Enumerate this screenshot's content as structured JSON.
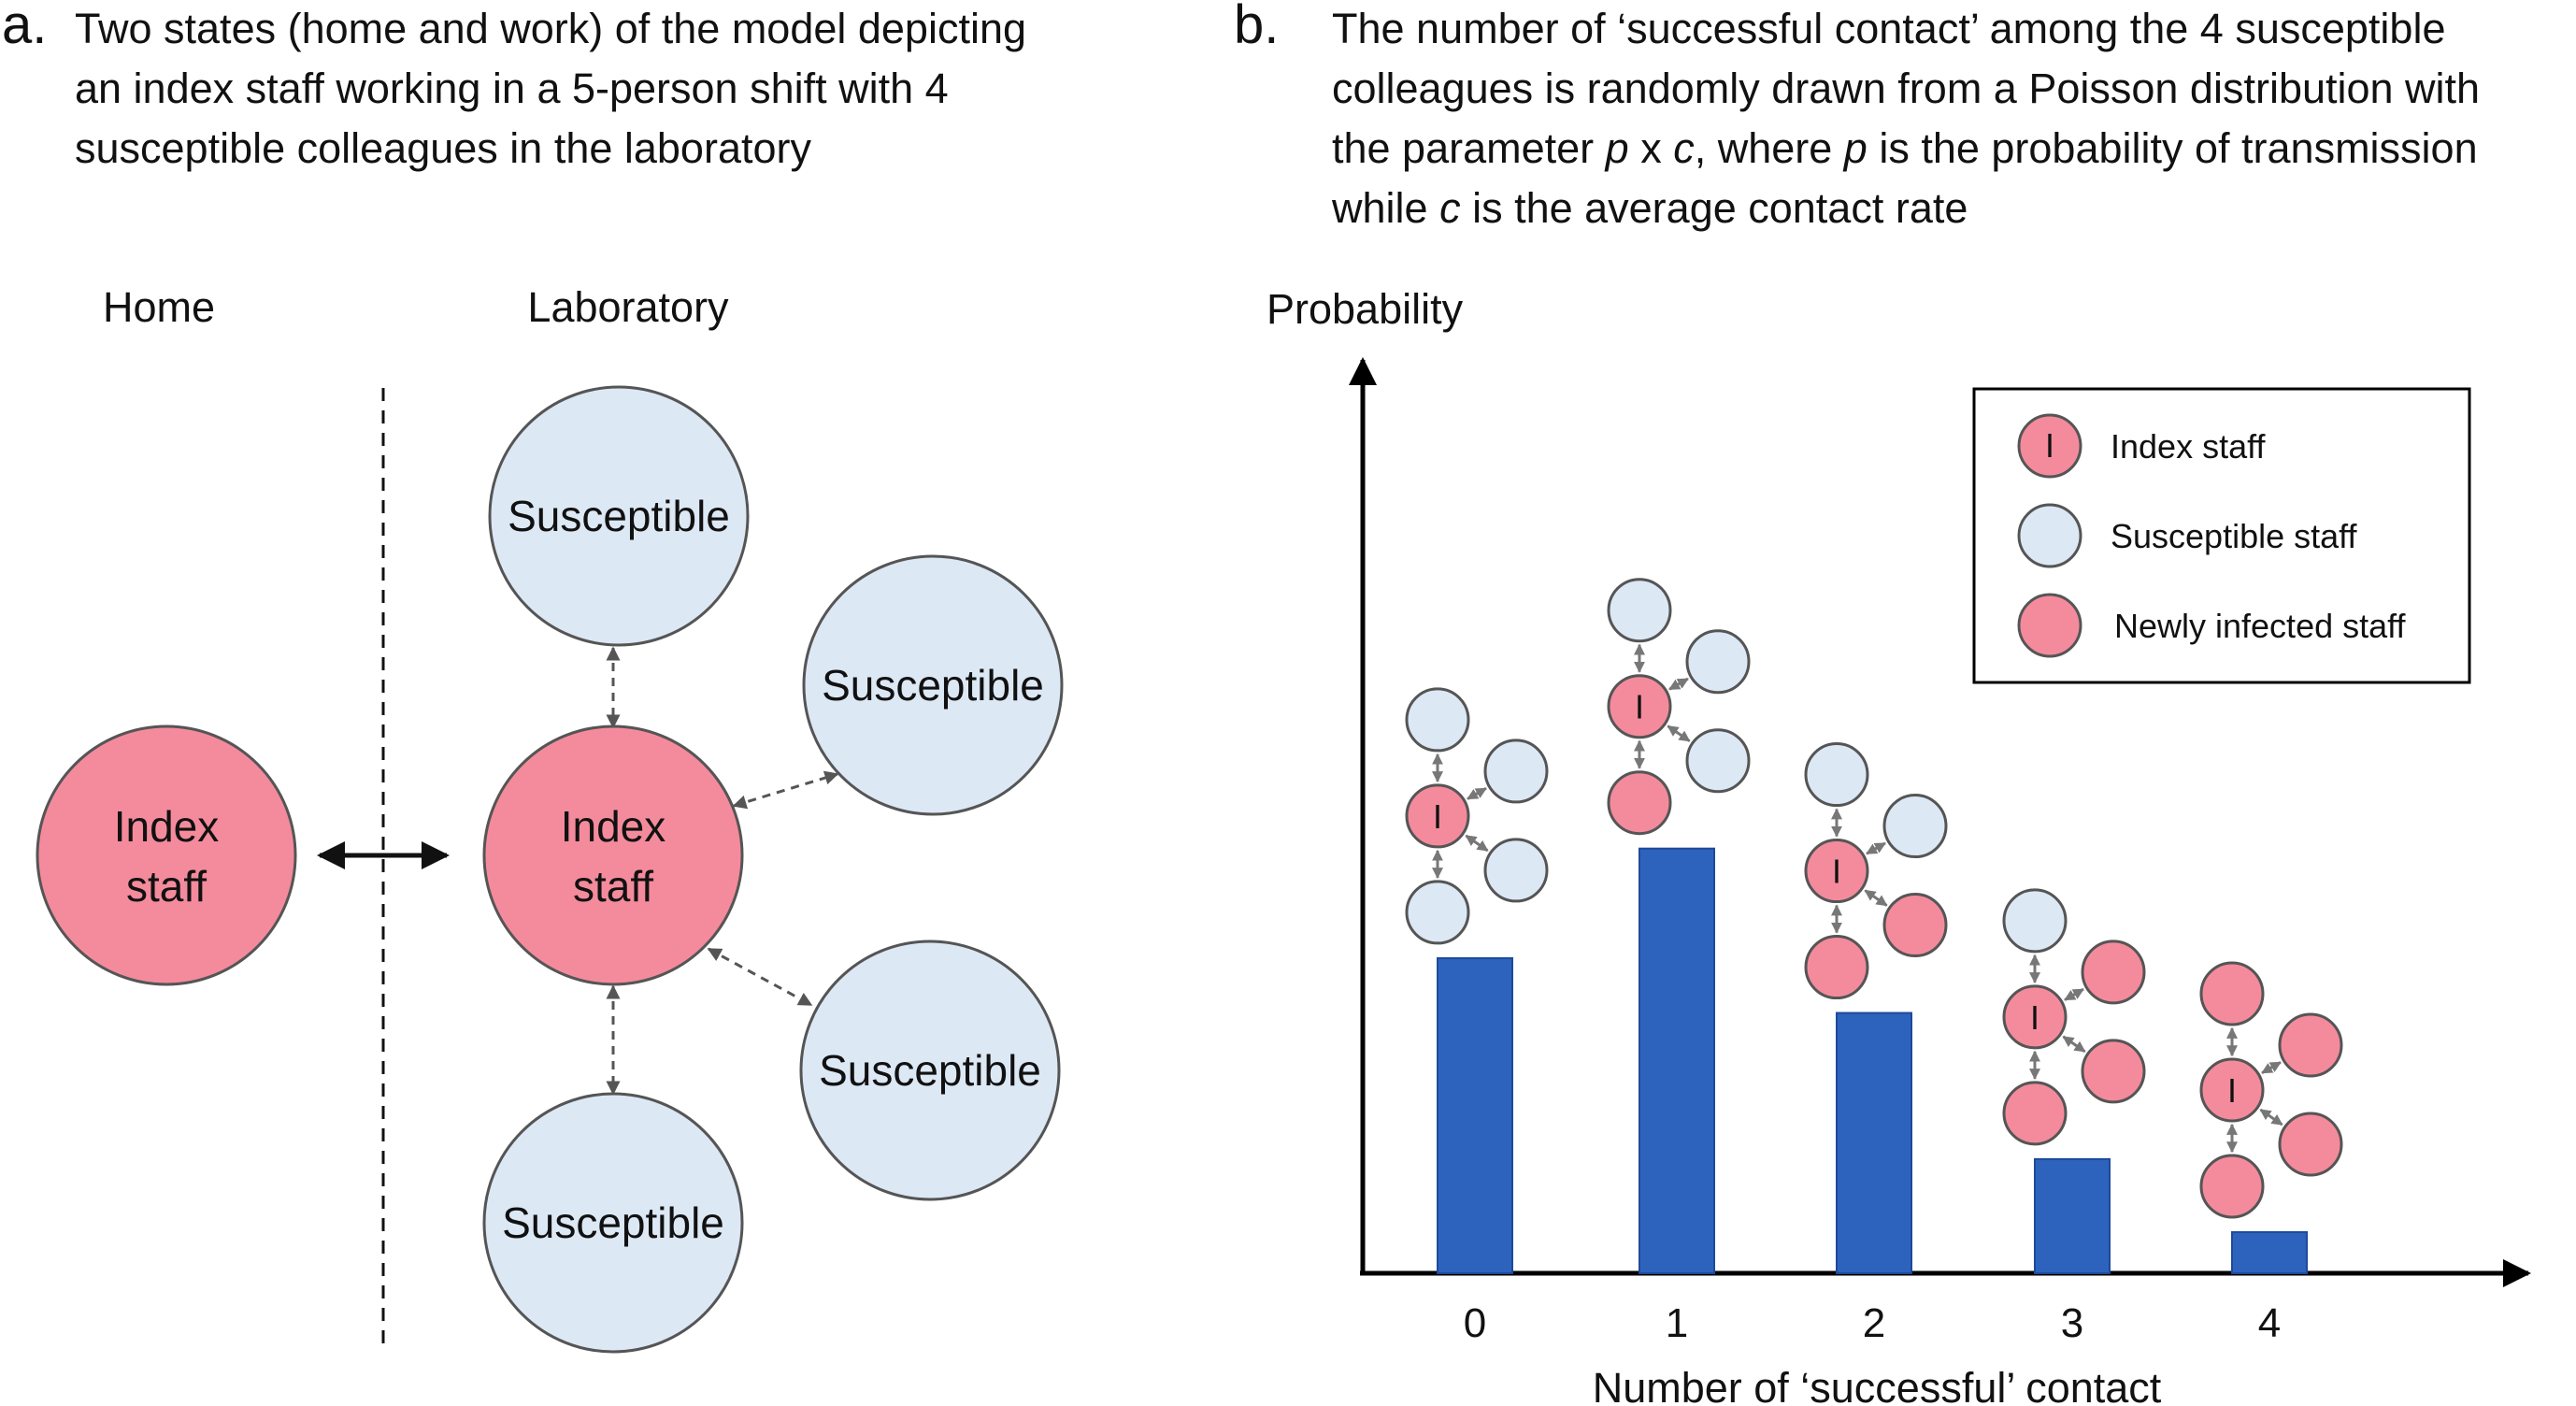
{
  "panel_a": {
    "letter": "a.",
    "caption_lines": [
      "Two states (home and work) of the model depicting",
      "an index staff working in a 5-person shift with 4",
      "susceptible colleagues in the laboratory"
    ],
    "home_label": "Home",
    "lab_label": "Laboratory",
    "index_label_line1": "Index",
    "index_label_line2": "staff",
    "susceptible_label": "Susceptible"
  },
  "panel_b": {
    "letter": "b.",
    "caption_lines": [
      [
        {
          "t": "The number of ‘successful contact’ among the 4 susceptible"
        }
      ],
      [
        {
          "t": "colleagues is randomly drawn from a Poisson distribution with"
        }
      ],
      [
        {
          "t": "the parameter "
        },
        {
          "t": "p",
          "i": true
        },
        {
          "t": " x "
        },
        {
          "t": "c",
          "i": true
        },
        {
          "t": ", where "
        },
        {
          "t": "p",
          "i": true
        },
        {
          "t": " is the probability of transmission"
        }
      ],
      [
        {
          "t": "while "
        },
        {
          "t": "c",
          "i": true
        },
        {
          "t": " is the average contact rate"
        }
      ]
    ]
  },
  "legend": {
    "index_marker": "I",
    "items": [
      {
        "label": "Index staff",
        "color": "#f48b9c"
      },
      {
        "label": "Susceptible staff",
        "color": "#dde8f5"
      },
      {
        "label": "Newly infected staff",
        "color": "#f48b9c"
      }
    ]
  },
  "colors": {
    "index": "#f48b9c",
    "infected": "#f48b9c",
    "susceptible": "#dde8f5",
    "bar": "#2d63bd",
    "node_border": "#555555"
  },
  "chart_data": {
    "type": "bar",
    "title": "",
    "xlabel": "Number of ‘successful’ contact",
    "ylabel": "Probability",
    "categories": [
      "0",
      "1",
      "2",
      "3",
      "4"
    ],
    "values": [
      0.345,
      0.465,
      0.285,
      0.125,
      0.045
    ],
    "ylim": [
      0,
      1
    ],
    "infected_counts": [
      0,
      1,
      2,
      3,
      4
    ],
    "legend_position": "top-right",
    "grid": false
  }
}
